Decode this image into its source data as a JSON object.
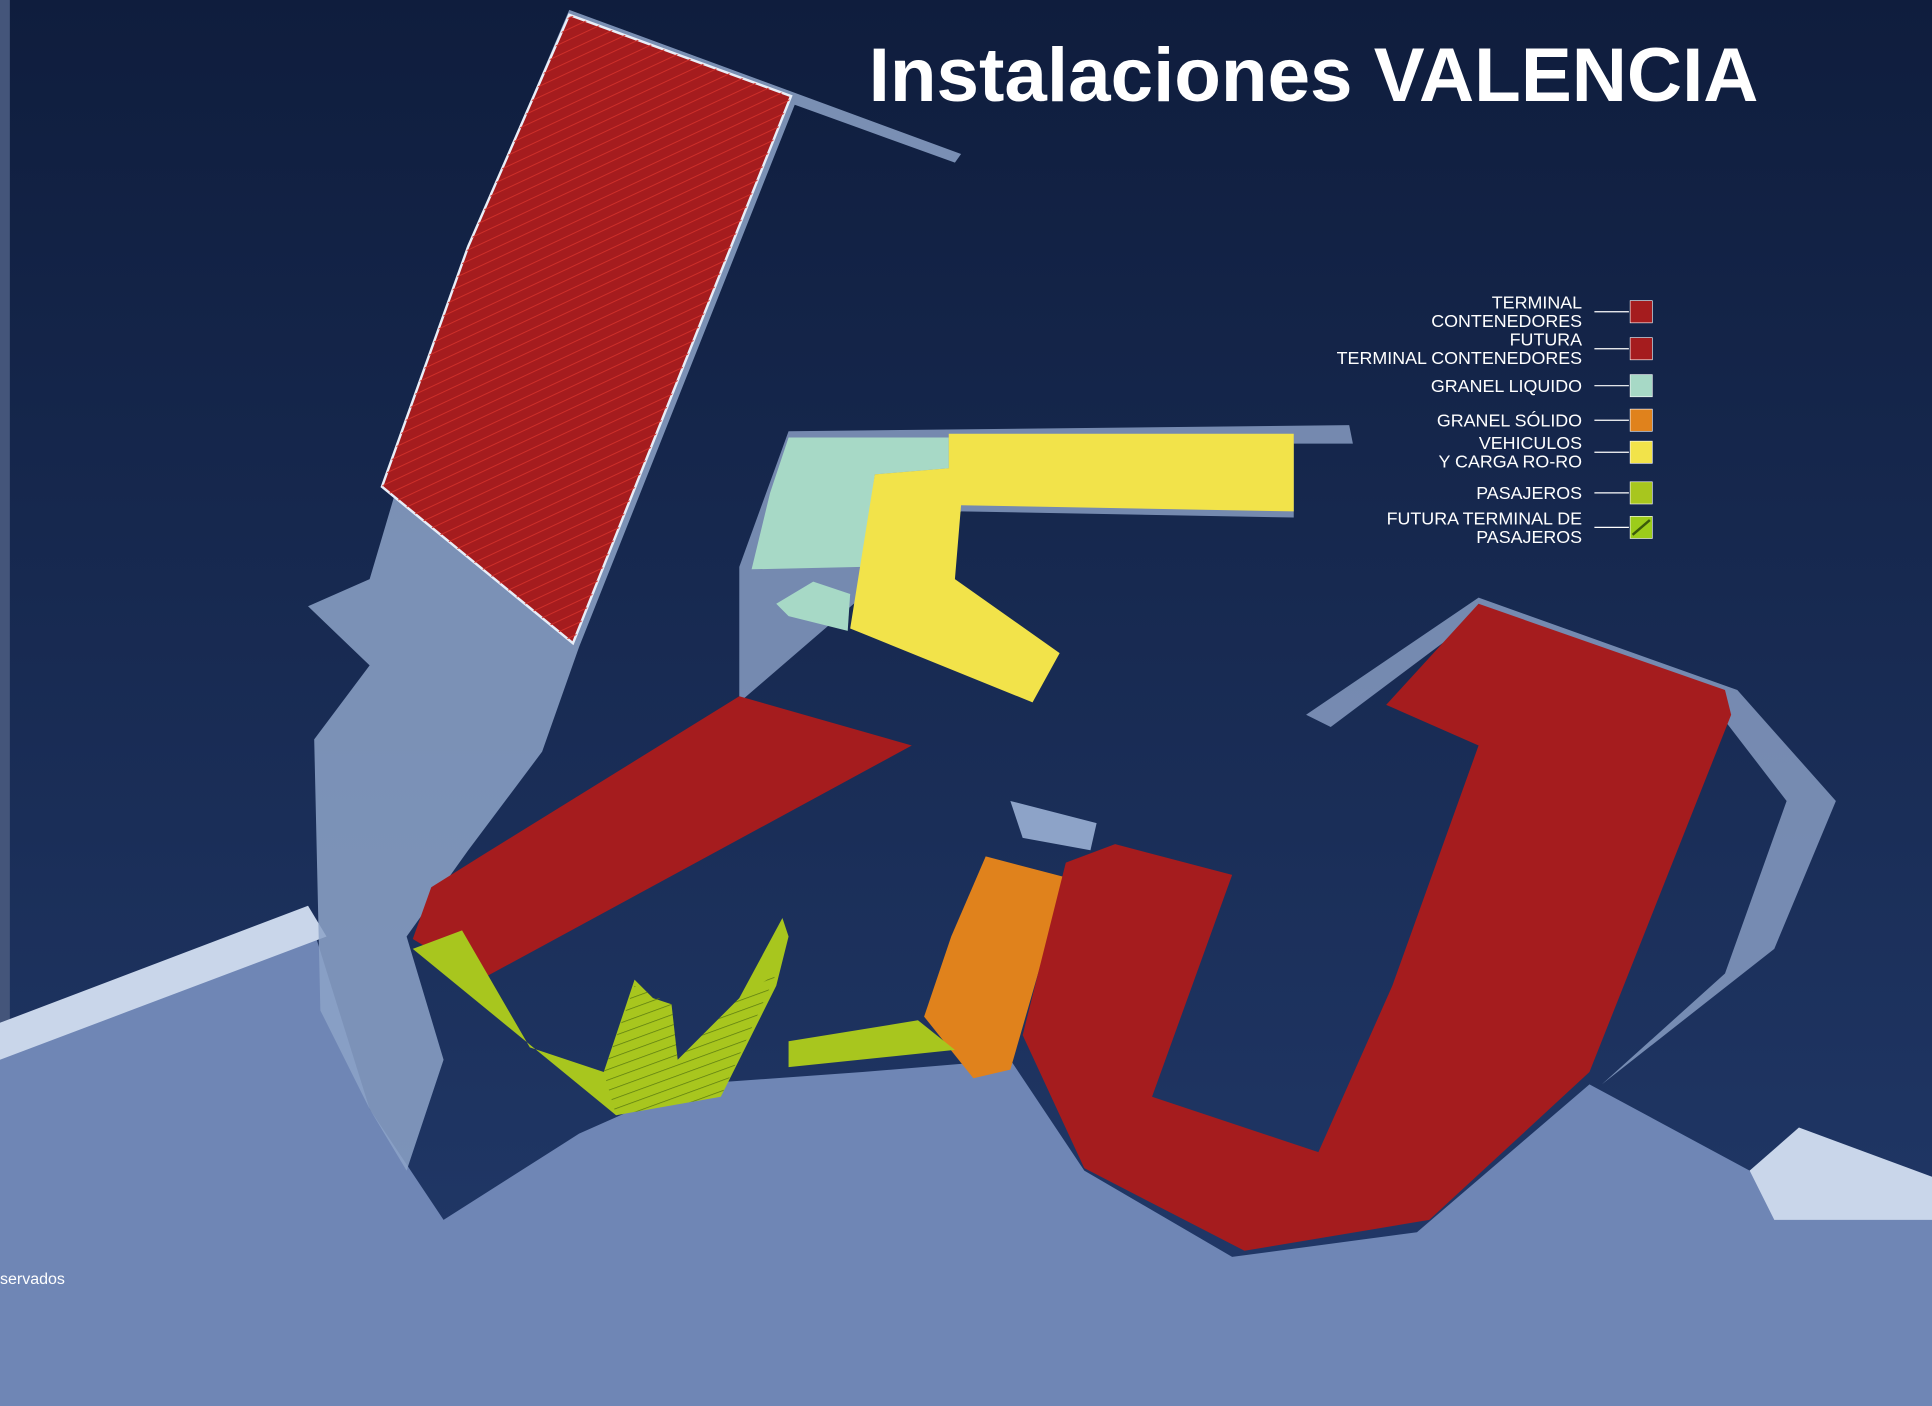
{
  "title": "Instalaciones VALENCIA",
  "legend": [
    {
      "lines": [
        "TERMINAL",
        "CONTENEDORES"
      ],
      "color": "#a51c1e"
    },
    {
      "lines": [
        "FUTURA",
        "TERMINAL CONTENEDORES"
      ],
      "color": "#a51c1e"
    },
    {
      "lines": [
        "GRANEL LIQUIDO"
      ],
      "color": "#a7d9c6"
    },
    {
      "lines": [
        "GRANEL SÓLIDO"
      ],
      "color": "#e0821c"
    },
    {
      "lines": [
        "VEHICULOS",
        "Y CARGA RO-RO"
      ],
      "color": "#f2e34a"
    },
    {
      "lines": [
        "PASAJEROS"
      ],
      "color": "#a8c61e"
    },
    {
      "lines": [
        "FUTURA TERMINAL DE",
        "PASAJEROS"
      ],
      "color": "#9ccc1a"
    }
  ],
  "footer": "servados"
}
